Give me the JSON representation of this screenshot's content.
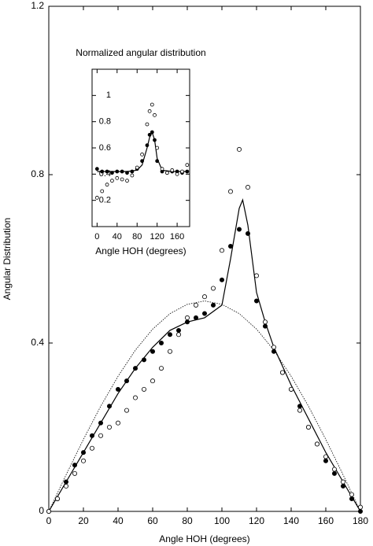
{
  "chart_data": [
    {
      "type": "line",
      "xlabel": "Angle HOH (degrees)",
      "ylabel": "Angular Distribution",
      "xlim": [
        0,
        180
      ],
      "ylim": [
        0,
        1.2
      ],
      "xticks": [
        0,
        20,
        40,
        60,
        80,
        100,
        120,
        140,
        160,
        180
      ],
      "yticks": [
        0,
        0.4,
        0.8,
        1.2
      ],
      "series": [
        {
          "mode": "line",
          "dash": "solid",
          "color": "#000000",
          "x": [
            0,
            10,
            20,
            30,
            40,
            50,
            60,
            70,
            80,
            90,
            100,
            105,
            110,
            112,
            115,
            120,
            125,
            130,
            140,
            150,
            160,
            170,
            180
          ],
          "values": [
            0,
            0.07,
            0.14,
            0.21,
            0.28,
            0.34,
            0.39,
            0.43,
            0.45,
            0.46,
            0.49,
            0.6,
            0.72,
            0.74,
            0.68,
            0.52,
            0.45,
            0.39,
            0.3,
            0.22,
            0.14,
            0.07,
            0
          ]
        },
        {
          "mode": "line",
          "dash": "dotted",
          "color": "#000000",
          "x": [
            0,
            10,
            20,
            30,
            40,
            50,
            60,
            70,
            80,
            90,
            100,
            110,
            120,
            130,
            140,
            150,
            160,
            170,
            180
          ],
          "values": [
            0,
            0.087,
            0.171,
            0.25,
            0.321,
            0.383,
            0.433,
            0.47,
            0.492,
            0.5,
            0.492,
            0.47,
            0.433,
            0.383,
            0.321,
            0.25,
            0.171,
            0.087,
            0
          ]
        },
        {
          "mode": "markers",
          "marker": "filled",
          "color": "#000000",
          "x": [
            0,
            5,
            10,
            15,
            20,
            25,
            30,
            35,
            40,
            45,
            50,
            55,
            60,
            65,
            70,
            75,
            80,
            85,
            90,
            95,
            100,
            105,
            110,
            115,
            120,
            125,
            130,
            135,
            140,
            145,
            150,
            155,
            160,
            165,
            170,
            175,
            180
          ],
          "values": [
            0,
            0.03,
            0.07,
            0.11,
            0.14,
            0.18,
            0.21,
            0.25,
            0.29,
            0.31,
            0.34,
            0.36,
            0.38,
            0.4,
            0.42,
            0.43,
            0.45,
            0.46,
            0.47,
            0.49,
            0.55,
            0.63,
            0.67,
            0.66,
            0.5,
            0.44,
            0.38,
            0.33,
            0.29,
            0.25,
            0.2,
            0.16,
            0.12,
            0.09,
            0.06,
            0.03,
            0
          ]
        },
        {
          "mode": "markers",
          "marker": "open",
          "color": "#000000",
          "x": [
            0,
            5,
            10,
            15,
            20,
            25,
            30,
            35,
            40,
            45,
            50,
            55,
            60,
            65,
            70,
            75,
            80,
            85,
            90,
            95,
            100,
            105,
            110,
            115,
            120,
            125,
            130,
            135,
            140,
            145,
            150,
            155,
            160,
            165,
            170,
            175,
            180
          ],
          "values": [
            0,
            0.03,
            0.06,
            0.09,
            0.12,
            0.15,
            0.18,
            0.2,
            0.21,
            0.24,
            0.27,
            0.29,
            0.31,
            0.34,
            0.38,
            0.42,
            0.46,
            0.49,
            0.51,
            0.53,
            0.62,
            0.76,
            0.86,
            0.77,
            0.56,
            0.45,
            0.39,
            0.33,
            0.29,
            0.24,
            0.2,
            0.16,
            0.13,
            0.1,
            0.07,
            0.04,
            0.01
          ]
        }
      ]
    },
    {
      "type": "line",
      "title": "Normalized angular distribution",
      "xlabel": "Angle HOH (degrees)",
      "xlim": [
        -10,
        185
      ],
      "ylim": [
        0,
        1.2
      ],
      "xticks": [
        0,
        40,
        80,
        120,
        160
      ],
      "yticks": [
        0.2,
        0.4,
        0.6,
        0.8,
        1
      ],
      "series": [
        {
          "mode": "line",
          "dash": "solid",
          "color": "#000000",
          "x": [
            0,
            30,
            60,
            80,
            90,
            100,
            105,
            110,
            115,
            120,
            130,
            150,
            180
          ],
          "values": [
            0.42,
            0.42,
            0.42,
            0.43,
            0.47,
            0.6,
            0.68,
            0.72,
            0.66,
            0.52,
            0.43,
            0.42,
            0.42
          ]
        },
        {
          "mode": "markers",
          "marker": "filled",
          "color": "#000000",
          "x": [
            0,
            10,
            20,
            30,
            40,
            50,
            60,
            70,
            80,
            90,
            100,
            105,
            110,
            115,
            120,
            130,
            140,
            150,
            160,
            170,
            180
          ],
          "values": [
            0.44,
            0.42,
            0.42,
            0.41,
            0.42,
            0.42,
            0.41,
            0.42,
            0.44,
            0.5,
            0.62,
            0.7,
            0.72,
            0.66,
            0.5,
            0.42,
            0.41,
            0.42,
            0.42,
            0.41,
            0.42
          ]
        },
        {
          "mode": "markers",
          "marker": "open",
          "color": "#000000",
          "x": [
            0,
            10,
            20,
            30,
            40,
            50,
            60,
            70,
            80,
            90,
            100,
            105,
            110,
            115,
            120,
            130,
            140,
            150,
            160,
            170,
            180
          ],
          "values": [
            0.22,
            0.27,
            0.32,
            0.35,
            0.37,
            0.36,
            0.35,
            0.39,
            0.45,
            0.55,
            0.78,
            0.88,
            0.93,
            0.85,
            0.6,
            0.44,
            0.41,
            0.43,
            0.4,
            0.42,
            0.47
          ]
        }
      ]
    }
  ]
}
